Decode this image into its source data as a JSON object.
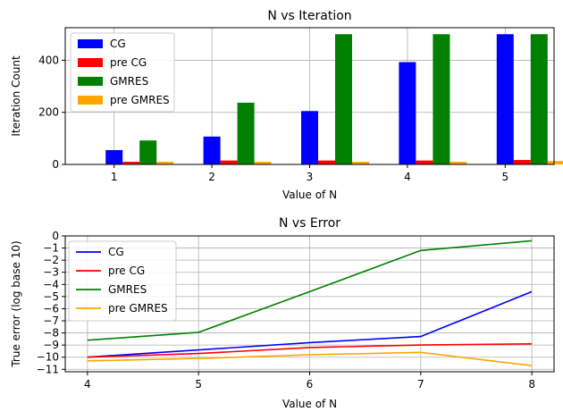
{
  "chart_data": [
    {
      "type": "bar",
      "title": "N vs Iteration",
      "xlabel": "Value of N",
      "ylabel": "Iteration Count",
      "categories": [
        "1",
        "2",
        "3",
        "4",
        "5"
      ],
      "ylim": [
        0,
        525
      ],
      "yticks": [
        0,
        200,
        400
      ],
      "grid": true,
      "legend_position": "upper-left",
      "series": [
        {
          "name": "CG",
          "color": "#0000ff",
          "values": [
            55,
            107,
            205,
            393,
            500
          ]
        },
        {
          "name": "pre CG",
          "color": "#ff0000",
          "values": [
            10,
            15,
            15,
            15,
            17
          ]
        },
        {
          "name": "GMRES",
          "color": "#008000",
          "values": [
            92,
            237,
            500,
            500,
            500
          ]
        },
        {
          "name": "pre GMRES",
          "color": "#ffa500",
          "values": [
            10,
            10,
            10,
            10,
            13
          ]
        }
      ]
    },
    {
      "type": "line",
      "title": "N vs Error",
      "xlabel": "Value of N",
      "ylabel": "True error (log base 10)",
      "x": [
        4,
        5,
        6,
        7,
        8
      ],
      "xticks": [
        4,
        5,
        6,
        7,
        8
      ],
      "xlim": [
        3.8,
        8.2
      ],
      "ylim": [
        -11.2,
        0
      ],
      "yticks": [
        0,
        -1,
        -2,
        -3,
        -4,
        -5,
        -6,
        -7,
        -8,
        -9,
        -10,
        -11
      ],
      "grid": true,
      "legend_position": "upper-left",
      "series": [
        {
          "name": "CG",
          "color": "#0000ff",
          "values": [
            -10.0,
            -9.4,
            -8.8,
            -8.3,
            -4.6
          ]
        },
        {
          "name": "pre CG",
          "color": "#ff0000",
          "values": [
            -10.0,
            -9.7,
            -9.2,
            -9.0,
            -8.9
          ]
        },
        {
          "name": "GMRES",
          "color": "#008000",
          "values": [
            -8.6,
            -7.95,
            -4.6,
            -1.2,
            -0.4
          ]
        },
        {
          "name": "pre GMRES",
          "color": "#ffa500",
          "values": [
            -10.3,
            -10.1,
            -9.8,
            -9.6,
            -10.7
          ]
        }
      ]
    }
  ]
}
